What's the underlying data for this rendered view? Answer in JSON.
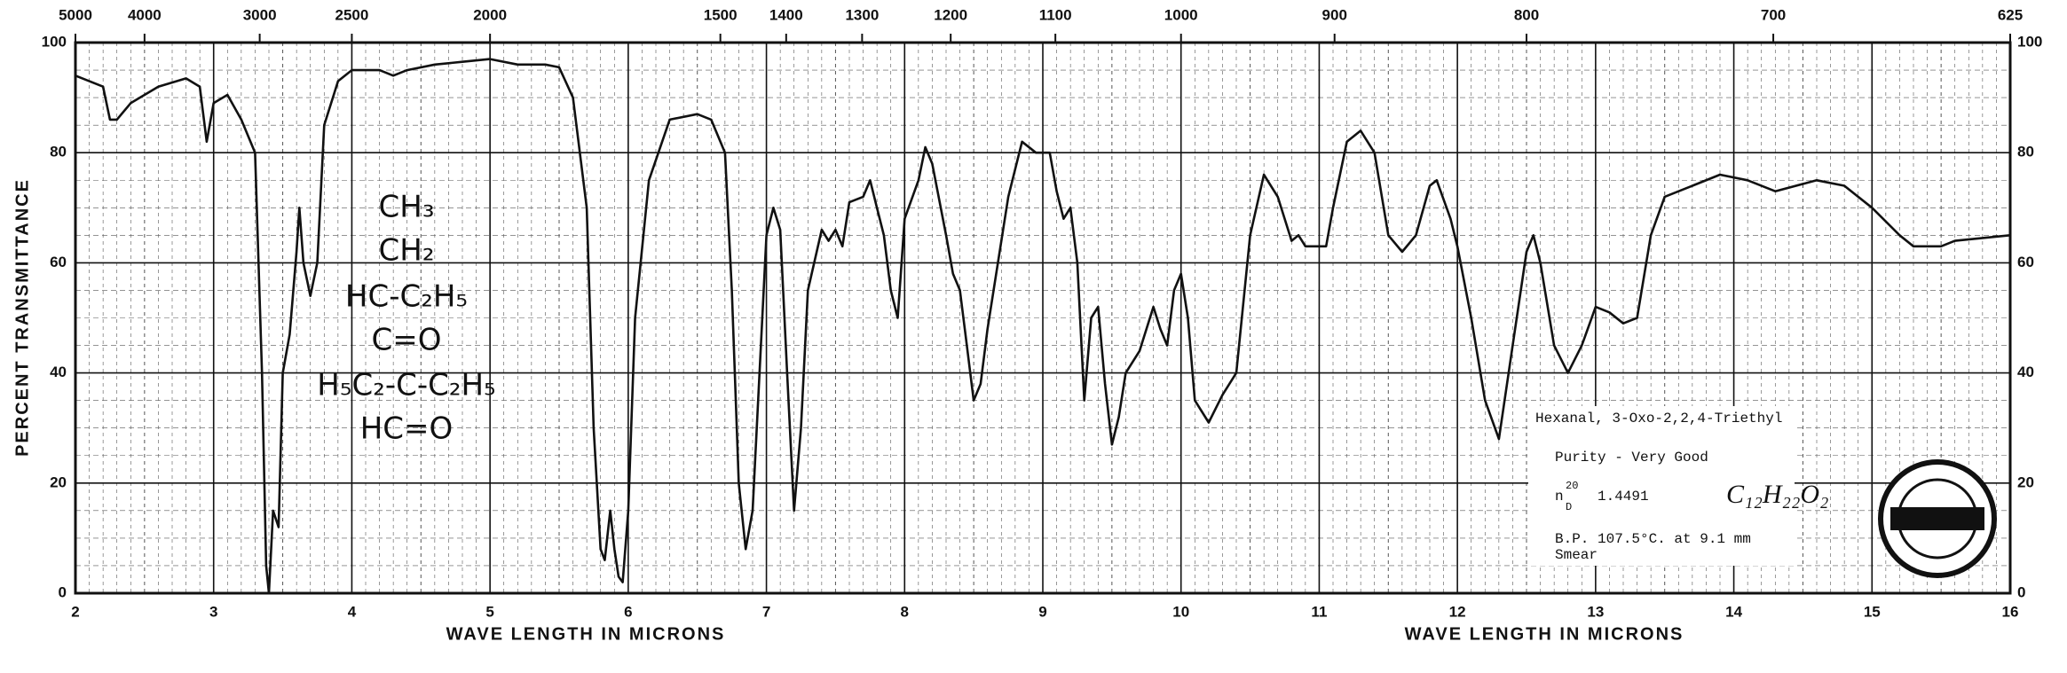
{
  "chart_data": {
    "type": "line",
    "xlabel": "WAVE LENGTH IN MICRONS",
    "ylabel": "PERCENT TRANSMITTANCE",
    "xlim": [
      2,
      16
    ],
    "ylim": [
      0,
      100
    ],
    "xticks": [
      2,
      3,
      4,
      5,
      6,
      7,
      8,
      9,
      10,
      11,
      12,
      13,
      14,
      15,
      16
    ],
    "yticks": [
      0,
      20,
      40,
      60,
      80,
      100
    ],
    "x2ticks": [
      5000,
      4000,
      3000,
      2500,
      2000,
      1500,
      1400,
      1300,
      1200,
      1100,
      1000,
      900,
      800,
      700,
      625
    ],
    "grid": true,
    "x": [
      2.0,
      2.2,
      2.25,
      2.3,
      2.4,
      2.6,
      2.8,
      2.9,
      2.95,
      3.0,
      3.1,
      3.2,
      3.3,
      3.35,
      3.38,
      3.4,
      3.43,
      3.47,
      3.5,
      3.55,
      3.6,
      3.62,
      3.65,
      3.7,
      3.75,
      3.8,
      3.9,
      4.0,
      4.2,
      4.3,
      4.4,
      4.6,
      4.8,
      5.0,
      5.2,
      5.4,
      5.5,
      5.6,
      5.7,
      5.75,
      5.8,
      5.83,
      5.87,
      5.9,
      5.93,
      5.96,
      6.0,
      6.05,
      6.15,
      6.3,
      6.5,
      6.6,
      6.7,
      6.75,
      6.8,
      6.85,
      6.9,
      6.95,
      7.0,
      7.05,
      7.1,
      7.15,
      7.2,
      7.25,
      7.3,
      7.4,
      7.45,
      7.5,
      7.55,
      7.6,
      7.7,
      7.75,
      7.8,
      7.85,
      7.9,
      7.95,
      8.0,
      8.1,
      8.15,
      8.2,
      8.3,
      8.35,
      8.4,
      8.45,
      8.5,
      8.55,
      8.6,
      8.75,
      8.85,
      8.95,
      9.05,
      9.1,
      9.15,
      9.2,
      9.25,
      9.3,
      9.35,
      9.4,
      9.45,
      9.5,
      9.55,
      9.6,
      9.7,
      9.8,
      9.85,
      9.9,
      9.95,
      10.0,
      10.05,
      10.1,
      10.2,
      10.3,
      10.4,
      10.5,
      10.6,
      10.7,
      10.8,
      10.85,
      10.9,
      11.05,
      11.1,
      11.2,
      11.3,
      11.4,
      11.5,
      11.6,
      11.7,
      11.8,
      11.85,
      11.95,
      12.0,
      12.1,
      12.2,
      12.3,
      12.4,
      12.5,
      12.55,
      12.6,
      12.7,
      12.8,
      12.9,
      13.0,
      13.1,
      13.2,
      13.3,
      13.4,
      13.5,
      13.7,
      13.9,
      14.1,
      14.3,
      14.6,
      14.8,
      15.0,
      15.2,
      15.3,
      15.5,
      15.6,
      16.0
    ],
    "series": [
      {
        "color": "#111111",
        "values": [
          94,
          92,
          86,
          86,
          89,
          92,
          93.5,
          92,
          82,
          89,
          90.5,
          86,
          80,
          40,
          5,
          0,
          15,
          12,
          40,
          47,
          62,
          70,
          60,
          54,
          60,
          85,
          93,
          95,
          95,
          94,
          95,
          96,
          96.5,
          97,
          96,
          96,
          95.5,
          90,
          70,
          30,
          8,
          6,
          15,
          8,
          3,
          2,
          15,
          50,
          75,
          86,
          87,
          86,
          80,
          55,
          20,
          8,
          15,
          40,
          65,
          70,
          66,
          40,
          15,
          30,
          55,
          66,
          64,
          66,
          63,
          71,
          72,
          75,
          70,
          65,
          55,
          50,
          68,
          75,
          81,
          78,
          65,
          58,
          55,
          45,
          35,
          38,
          48,
          72,
          82,
          80,
          80,
          73,
          68,
          70,
          60,
          35,
          50,
          52,
          38,
          27,
          32,
          40,
          44,
          52,
          48,
          45,
          55,
          58,
          50,
          35,
          31,
          36,
          40,
          65,
          76,
          72,
          64,
          65,
          63,
          63,
          70,
          82,
          84,
          80,
          65,
          62,
          65,
          74,
          75,
          68,
          63,
          50,
          35,
          28,
          45,
          62,
          65,
          60,
          45,
          40,
          45,
          52,
          51,
          49,
          50,
          65,
          72,
          74,
          76,
          75,
          73,
          75,
          74,
          70,
          65,
          63,
          63,
          64,
          65
        ]
      }
    ],
    "annotations": {
      "structure": [
        "CH₃",
        "CH₂",
        "HC-C₂H₅",
        "C=O",
        "H₅C₂-C-C₂H₅",
        "HC=O"
      ],
      "compound": "Hexanal, 3-Oxo-2,2,4-Triethyl",
      "purity": "Purity - Very Good",
      "refractive_index": {
        "symbol": "n",
        "sup": "20",
        "sub": "D",
        "value": "1.4491"
      },
      "formula": "C₁₂H₂₂O₂",
      "boiling_point": "B.P. 107.5°C. at 9.1 mm",
      "sample": "Smear"
    }
  }
}
